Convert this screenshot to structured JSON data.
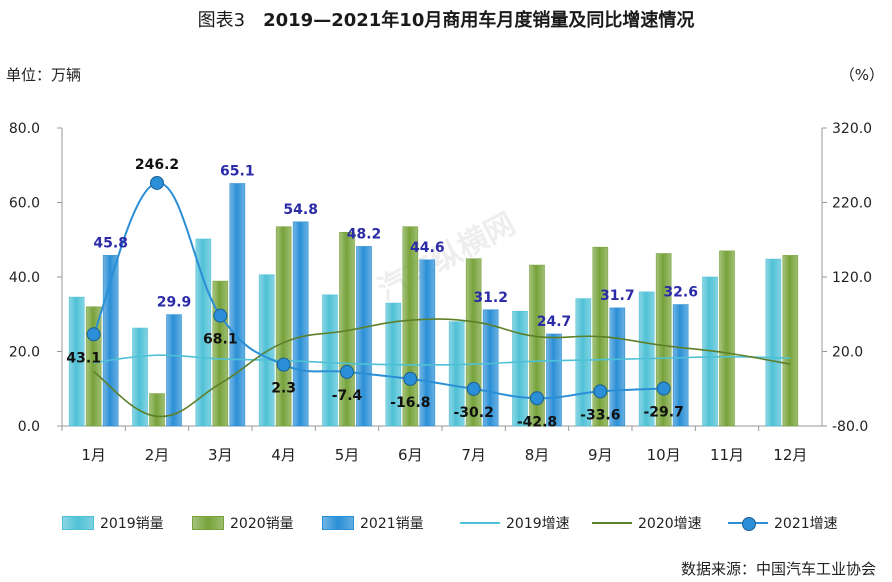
{
  "title": {
    "fig_no": "图表3",
    "text": "2019—2021年10月商用车月度销量及同比增速情况"
  },
  "unit_left": "单位：万辆",
  "unit_right": "（%）",
  "source": "数据来源：中国汽车工业协会",
  "watermark": "汽车纵横网",
  "chart_data": {
    "type": "bar",
    "categories": [
      "1月",
      "2月",
      "3月",
      "4月",
      "5月",
      "6月",
      "7月",
      "8月",
      "9月",
      "10月",
      "11月",
      "12月"
    ],
    "left_axis": {
      "ylim": [
        0,
        80
      ],
      "ticks": [
        "0.0",
        "20.0",
        "40.0",
        "60.0",
        "80.0"
      ]
    },
    "right_axis": {
      "ylim": [
        -80,
        320
      ],
      "ticks": [
        "-80.0",
        "20.0",
        "120.0",
        "220.0",
        "320.0"
      ]
    },
    "bar_series": [
      {
        "name": "2019销量",
        "color": "#4fc1d6",
        "values": [
          34.6,
          26.3,
          50.2,
          40.6,
          35.2,
          33.0,
          28.0,
          30.8,
          34.2,
          36.0,
          40.0,
          44.8
        ]
      },
      {
        "name": "2020销量",
        "color": "#77a33a",
        "values": [
          32.0,
          8.7,
          38.9,
          53.5,
          52.0,
          53.5,
          44.9,
          43.2,
          48.0,
          46.3,
          47.0,
          45.8
        ]
      },
      {
        "name": "2021销量",
        "color": "#2a8fd6",
        "values": [
          45.8,
          29.9,
          65.1,
          54.8,
          48.2,
          44.6,
          31.2,
          24.7,
          31.7,
          32.6,
          null,
          null
        ]
      }
    ],
    "line_series": [
      {
        "name": "2019增速",
        "color": "#4fc1d6",
        "values": [
          5,
          15,
          10,
          8,
          4,
          2,
          3,
          7,
          9,
          11,
          13,
          11
        ]
      },
      {
        "name": "2020增速",
        "color": "#5d7f2a",
        "values": [
          -7,
          -67,
          -23,
          32,
          48,
          62,
          60,
          40,
          40,
          28,
          18,
          3
        ]
      },
      {
        "name": "2021增速",
        "color": "#2a8fd6",
        "values": [
          43.1,
          246.2,
          68.1,
          2.3,
          -7.4,
          -16.8,
          -30.2,
          -42.8,
          -33.6,
          -29.7,
          null,
          null
        ]
      }
    ],
    "bar_labels_2021": [
      "45.8",
      "29.9",
      "65.1",
      "54.8",
      "48.2",
      "44.6",
      "31.2",
      "24.7",
      "31.7",
      "32.6"
    ],
    "growth_labels_2021": [
      "43.1",
      "246.2",
      "68.1",
      "2.3",
      "-7.4",
      "-16.8",
      "-30.2",
      "-42.8",
      "-33.6",
      "-29.7"
    ],
    "legend_placement": "bottom",
    "grid": false
  }
}
